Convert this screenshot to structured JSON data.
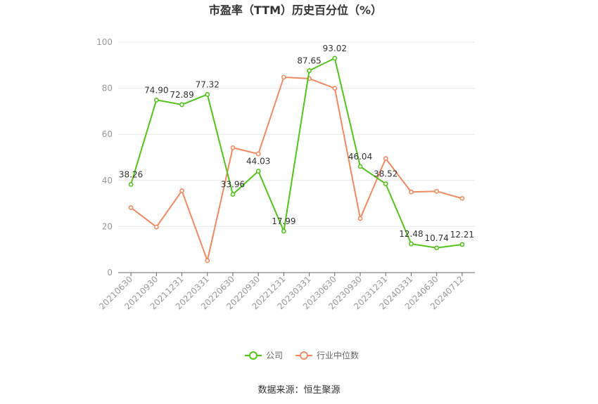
{
  "chart_data": {
    "type": "line",
    "title": "市盈率（TTM）历史百分位（%）",
    "xlabel": "",
    "ylabel": "",
    "ylim": [
      0,
      100
    ],
    "yticks": [
      0,
      20,
      40,
      60,
      80,
      100
    ],
    "grid": true,
    "legend": "bottom-center",
    "categories": [
      "20210630",
      "20210930",
      "20211231",
      "20220331",
      "20220630",
      "20220930",
      "20221231",
      "20230331",
      "20230630",
      "20230930",
      "20231231",
      "20240331",
      "20240630",
      "20240712"
    ],
    "series": [
      {
        "name": "公司",
        "color": "#52c41a",
        "values": [
          38.26,
          74.9,
          72.89,
          77.32,
          33.96,
          44.03,
          17.99,
          87.65,
          93.02,
          46.04,
          38.52,
          12.48,
          10.74,
          12.21
        ],
        "labels": [
          "38.26",
          "74.90",
          "72.89",
          "77.32",
          "33.96",
          "44.03",
          "17.99",
          "87.65",
          "93.02",
          "46.04",
          "38.52",
          "12.48",
          "10.74",
          "12.21"
        ]
      },
      {
        "name": "行业中位数",
        "color": "#f4895f",
        "values": [
          28.2,
          19.8,
          35.5,
          5.2,
          54.2,
          51.5,
          84.8,
          84.2,
          80.0,
          23.5,
          49.5,
          35.0,
          35.3,
          32.2
        ]
      }
    ]
  },
  "source": "数据来源：恒生聚源"
}
